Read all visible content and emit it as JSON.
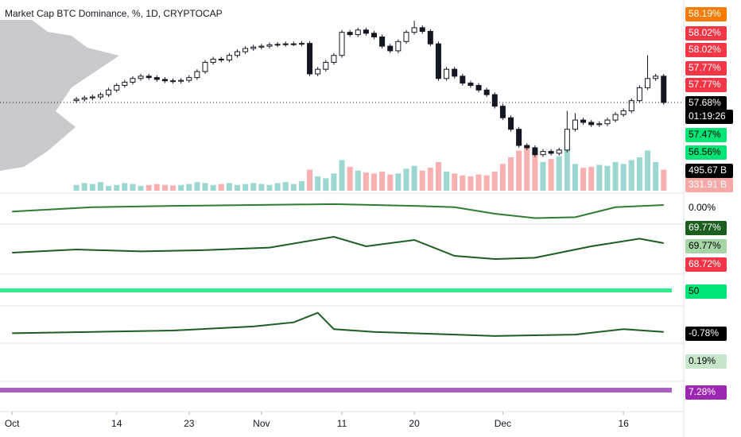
{
  "chart_data": {
    "type": "candlestick",
    "title": "Market Cap BTC Dominance, %, 1D, CRYPTOCAP",
    "x": [
      8,
      9,
      10,
      11,
      12,
      13,
      14,
      15,
      16,
      17,
      18,
      19,
      20,
      21,
      22,
      23,
      24,
      25,
      26,
      27,
      28,
      29,
      30,
      31,
      32,
      33,
      34,
      35,
      36,
      37,
      38,
      39,
      40,
      41,
      42,
      43,
      44,
      45,
      46,
      47,
      48,
      49,
      50,
      51,
      52,
      53,
      54,
      55,
      56,
      57,
      58,
      59,
      60,
      61,
      62,
      63,
      64,
      65,
      66,
      67,
      68,
      69,
      70,
      71,
      72,
      73,
      74,
      75,
      76,
      77,
      78,
      79,
      80,
      81
    ],
    "open": [
      57.72,
      57.75,
      57.78,
      57.8,
      57.85,
      57.95,
      58.05,
      58.12,
      58.2,
      58.25,
      58.22,
      58.18,
      58.15,
      58.14,
      58.16,
      58.22,
      58.35,
      58.55,
      58.62,
      58.6,
      58.7,
      58.78,
      58.85,
      58.88,
      58.9,
      58.93,
      58.94,
      58.95,
      58.95,
      58.96,
      58.3,
      58.4,
      58.55,
      58.7,
      59.2,
      59.15,
      59.25,
      59.18,
      59.1,
      58.9,
      58.8,
      59.0,
      59.2,
      59.3,
      59.22,
      58.95,
      58.2,
      58.4,
      58.25,
      58.1,
      58.05,
      57.95,
      57.85,
      57.6,
      57.35,
      57.1,
      56.75,
      56.7,
      56.55,
      56.62,
      56.58,
      56.65,
      57.1,
      57.3,
      57.25,
      57.2,
      57.22,
      57.3,
      57.42,
      57.5,
      57.72,
      58.0,
      58.2,
      58.25
    ],
    "high": [
      57.8,
      57.83,
      57.85,
      57.9,
      58.0,
      58.1,
      58.17,
      58.25,
      58.3,
      58.3,
      58.27,
      58.23,
      58.2,
      58.21,
      58.27,
      58.4,
      58.6,
      58.67,
      58.67,
      58.75,
      58.83,
      58.9,
      58.93,
      58.95,
      58.98,
      58.99,
      59.0,
      59.0,
      59.01,
      59.01,
      58.45,
      58.6,
      58.75,
      59.25,
      59.25,
      59.3,
      59.3,
      59.23,
      59.15,
      58.95,
      59.05,
      59.25,
      59.45,
      59.35,
      59.27,
      59.0,
      58.45,
      58.45,
      58.3,
      58.15,
      58.1,
      58.0,
      57.9,
      57.65,
      57.4,
      57.15,
      56.8,
      56.75,
      56.67,
      56.67,
      56.7,
      57.5,
      57.45,
      57.35,
      57.3,
      57.27,
      57.35,
      57.47,
      57.55,
      57.77,
      58.05,
      58.7,
      58.3,
      58.3
    ],
    "low": [
      57.67,
      57.7,
      57.73,
      57.75,
      57.8,
      57.9,
      58.0,
      58.07,
      58.15,
      58.17,
      58.13,
      58.1,
      58.09,
      58.09,
      58.11,
      58.17,
      58.3,
      58.5,
      58.55,
      58.55,
      58.65,
      58.73,
      58.8,
      58.83,
      58.85,
      58.88,
      58.89,
      58.9,
      58.9,
      58.25,
      58.25,
      58.35,
      58.5,
      58.65,
      59.1,
      59.1,
      59.13,
      59.05,
      58.85,
      58.75,
      58.75,
      58.95,
      59.15,
      59.17,
      58.9,
      58.15,
      58.15,
      58.2,
      58.05,
      58.0,
      57.9,
      57.8,
      57.55,
      57.3,
      57.05,
      56.7,
      56.65,
      56.5,
      56.5,
      56.53,
      56.53,
      56.6,
      57.05,
      57.2,
      57.15,
      57.15,
      57.17,
      57.25,
      57.37,
      57.45,
      57.67,
      57.95,
      58.15,
      57.63
    ],
    "close": [
      57.75,
      57.78,
      57.8,
      57.85,
      57.95,
      58.05,
      58.12,
      58.2,
      58.25,
      58.22,
      58.18,
      58.15,
      58.14,
      58.16,
      58.22,
      58.35,
      58.55,
      58.62,
      58.6,
      58.7,
      58.78,
      58.85,
      58.88,
      58.9,
      58.93,
      58.94,
      58.95,
      58.95,
      58.96,
      58.3,
      58.4,
      58.55,
      58.7,
      59.2,
      59.15,
      59.25,
      59.18,
      59.1,
      58.9,
      58.8,
      59.0,
      59.2,
      59.3,
      59.22,
      58.95,
      58.2,
      58.4,
      58.25,
      58.1,
      58.05,
      57.95,
      57.85,
      57.6,
      57.35,
      57.1,
      56.75,
      56.7,
      56.55,
      56.62,
      56.58,
      56.65,
      57.1,
      57.3,
      57.25,
      57.2,
      57.22,
      57.3,
      57.42,
      57.5,
      57.72,
      58.0,
      58.2,
      58.25,
      57.68
    ],
    "volume": [
      60,
      80,
      70,
      90,
      50,
      60,
      80,
      70,
      50,
      60,
      70,
      60,
      55,
      60,
      70,
      90,
      80,
      60,
      70,
      80,
      60,
      70,
      80,
      70,
      60,
      80,
      90,
      70,
      100,
      220,
      150,
      130,
      180,
      320,
      250,
      210,
      190,
      180,
      200,
      170,
      180,
      230,
      260,
      210,
      240,
      300,
      200,
      180,
      160,
      150,
      170,
      160,
      200,
      280,
      350,
      420,
      470,
      400,
      300,
      330,
      360,
      500,
      280,
      240,
      250,
      270,
      260,
      300,
      280,
      320,
      350,
      420,
      300,
      220
    ],
    "up_color": "#26a69a",
    "down_color": "#ef5350",
    "ylim": [
      56.2,
      59.9
    ],
    "volume_ylim": [
      0,
      540
    ],
    "xlim": [
      -1.5,
      83
    ],
    "xticks": [
      {
        "value": 0,
        "label": "Oct"
      },
      {
        "value": 13,
        "label": "14"
      },
      {
        "value": 22,
        "label": "23"
      },
      {
        "value": 31,
        "label": "Nov"
      },
      {
        "value": 41,
        "label": "11"
      },
      {
        "value": 50,
        "label": "20"
      },
      {
        "value": 61,
        "label": "Dec"
      },
      {
        "value": 76,
        "label": "16"
      }
    ],
    "price_labels": [
      {
        "label": "58.19%",
        "color": "#f57c00",
        "text_color": "#ffffff"
      },
      {
        "label": "58.02%",
        "color": "#f23645",
        "text_color": "#ffffff"
      },
      {
        "label": "58.02%",
        "color": "#f23645",
        "text_color": "#ffffff"
      },
      {
        "label": "57.77%",
        "color": "#f23645",
        "text_color": "#ffffff"
      },
      {
        "label": "57.77%",
        "color": "#f23645",
        "text_color": "#ffffff"
      },
      {
        "label": "57.68%",
        "color": "#000000",
        "text_color": "#ffffff"
      },
      {
        "label": "01:19:26",
        "color": "#000000",
        "text_color": "#ffffff"
      },
      {
        "label": "57.47%",
        "color": "#00e676",
        "text_color": "#000000"
      },
      {
        "label": "56.56%",
        "color": "#00e676",
        "text_color": "#000000"
      },
      {
        "label": "495.67 B",
        "color": "#000000",
        "text_color": "#ffffff"
      },
      {
        "label": "331.91 B",
        "color": "#f7a9a8",
        "text_color": "#ffffff"
      },
      {
        "label": "0.00%",
        "color": "#ffffff",
        "text_color": "#000000"
      },
      {
        "label": "69.77%",
        "color": "#1b5e20",
        "text_color": "#ffffff"
      },
      {
        "label": "69.77%",
        "color": "#a5d6a7",
        "text_color": "#000000"
      },
      {
        "label": "68.72%",
        "color": "#f23645",
        "text_color": "#ffffff"
      },
      {
        "label": "50",
        "color": "#00e676",
        "text_color": "#000000"
      },
      {
        "label": "-0.78%",
        "color": "#000000",
        "text_color": "#ffffff"
      },
      {
        "label": "0.19%",
        "color": "#c8e6c9",
        "text_color": "#000000"
      },
      {
        "label": "7.28%",
        "color": "#9c27b0",
        "text_color": "#ffffff"
      }
    ],
    "indicators": [
      {
        "color": "#2e7d32",
        "ylim": [
          -30,
          30
        ],
        "x": [
          0,
          10,
          20,
          30,
          40,
          50,
          55,
          60,
          65,
          70,
          75,
          81
        ],
        "values": [
          -5,
          5,
          8,
          10,
          12,
          8,
          5,
          -10,
          -20,
          -18,
          5,
          10
        ]
      },
      {
        "color": "#1b5e20",
        "ylim": [
          20,
          90
        ],
        "x": [
          0,
          8,
          16,
          24,
          32,
          40,
          44,
          50,
          55,
          60,
          65,
          72,
          78,
          81
        ],
        "values": [
          50,
          55,
          52,
          54,
          58,
          75,
          60,
          70,
          45,
          40,
          42,
          60,
          72,
          65
        ]
      },
      {
        "color": "#1b5e20",
        "ylim": [
          -5,
          16
        ],
        "x": [
          0,
          10,
          20,
          30,
          35,
          38,
          40,
          45,
          55,
          60,
          70,
          76,
          81
        ],
        "values": [
          0,
          1,
          2,
          5,
          8,
          15,
          3,
          1,
          -1,
          -2,
          -1,
          3,
          1
        ]
      }
    ]
  }
}
